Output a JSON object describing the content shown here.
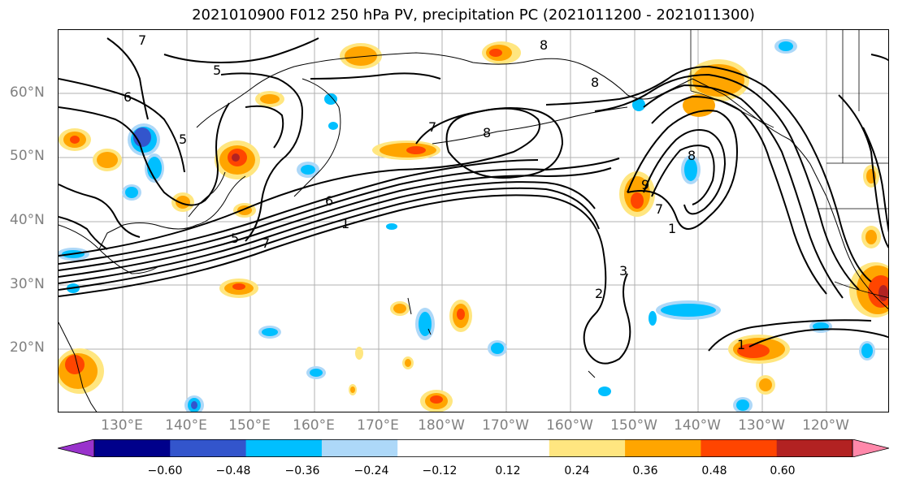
{
  "title": "2021010900 F012 250 hPa PV, precipitation PC (2021011200 - 2021011300)",
  "lat_labels": [
    "60°N",
    "50°N",
    "40°N",
    "30°N",
    "20°N"
  ],
  "lon_labels": [
    "130°E",
    "140°E",
    "150°E",
    "160°E",
    "170°E",
    "180°W",
    "170°W",
    "160°W",
    "150°W",
    "140°W",
    "130°W",
    "120°W"
  ],
  "contour_labels": [
    "7",
    "5",
    "6",
    "5",
    "8",
    "7",
    "8",
    "9",
    "8",
    "7",
    "1",
    "2",
    "3",
    "1",
    "6",
    "1",
    "5",
    "7",
    "8"
  ],
  "colorbar": {
    "colors": [
      "#9933cc",
      "#00008b",
      "#3355cc",
      "#00bfff",
      "#add8f8",
      "#ffffff",
      "#ffffff",
      "#ffe680",
      "#ffa500",
      "#ff4500",
      "#b22222",
      "#ff88aa"
    ],
    "ticks": [
      "−0.60",
      "−0.48",
      "−0.36",
      "−0.24",
      "−0.12",
      "0.12",
      "0.24",
      "0.36",
      "0.48",
      "0.60"
    ]
  }
}
